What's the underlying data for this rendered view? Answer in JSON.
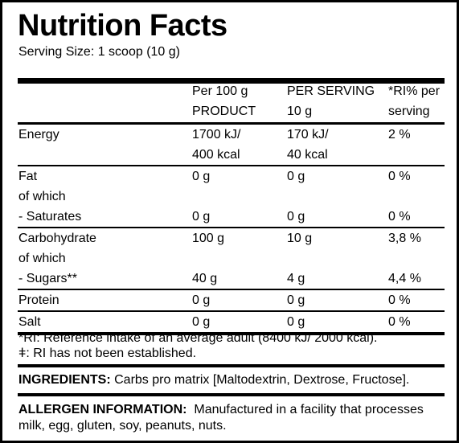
{
  "title": "Nutrition Facts",
  "serving_size": "Serving Size: 1 scoop (10 g)",
  "table": {
    "header": [
      [
        "Per 100 g",
        "PRODUCT"
      ],
      [
        "PER SERVING",
        "10 g"
      ],
      [
        "*RI% per",
        "serving"
      ]
    ],
    "sections": [
      [
        {
          "nutrient": "Energy",
          "per_100g": "1700 kJ/",
          "per_serving": "170 kJ/",
          "ri": "2 %"
        },
        {
          "per_100g": "400 kcal",
          "per_serving": "40 kcal"
        }
      ],
      [
        {
          "nutrient": "Fat",
          "per_100g": "0 g",
          "per_serving": "0 g",
          "ri": "0 %"
        },
        {
          "nutrient": "of which"
        },
        {
          "nutrient": "- Saturates",
          "per_100g": "0 g",
          "per_serving": "0 g",
          "ri": "0 %"
        }
      ],
      [
        {
          "nutrient": "Carbohydrate",
          "per_100g": "100 g",
          "per_serving": "10 g",
          "ri": "3,8 %"
        },
        {
          "nutrient": "of which"
        },
        {
          "nutrient": "- Sugars**",
          "per_100g": "40 g",
          "per_serving": "4 g",
          "ri": "4,4 %"
        }
      ],
      [
        {
          "nutrient": "Protein",
          "per_100g": "0 g",
          "per_serving": "0 g",
          "ri": "0 %"
        }
      ],
      [
        {
          "nutrient": "Salt",
          "per_100g": "0 g",
          "per_serving": "0 g",
          "ri": "0 %"
        }
      ]
    ]
  },
  "footnotes": [
    "*RI: Reference intake of an average adult (8400 kJ/ 2000 kcal).",
    "ǂ: RI has not been established."
  ],
  "ingredients": {
    "heading": "INGREDIENTS:",
    "text": "Carbs pro matrix [Maltodextrin, Dextrose, Fructose]."
  },
  "allergens": {
    "heading": "ALLERGEN INFORMATION:",
    "text": "Manufactured in a facility that processes milk, egg, gluten, soy, peanuts, nuts."
  }
}
